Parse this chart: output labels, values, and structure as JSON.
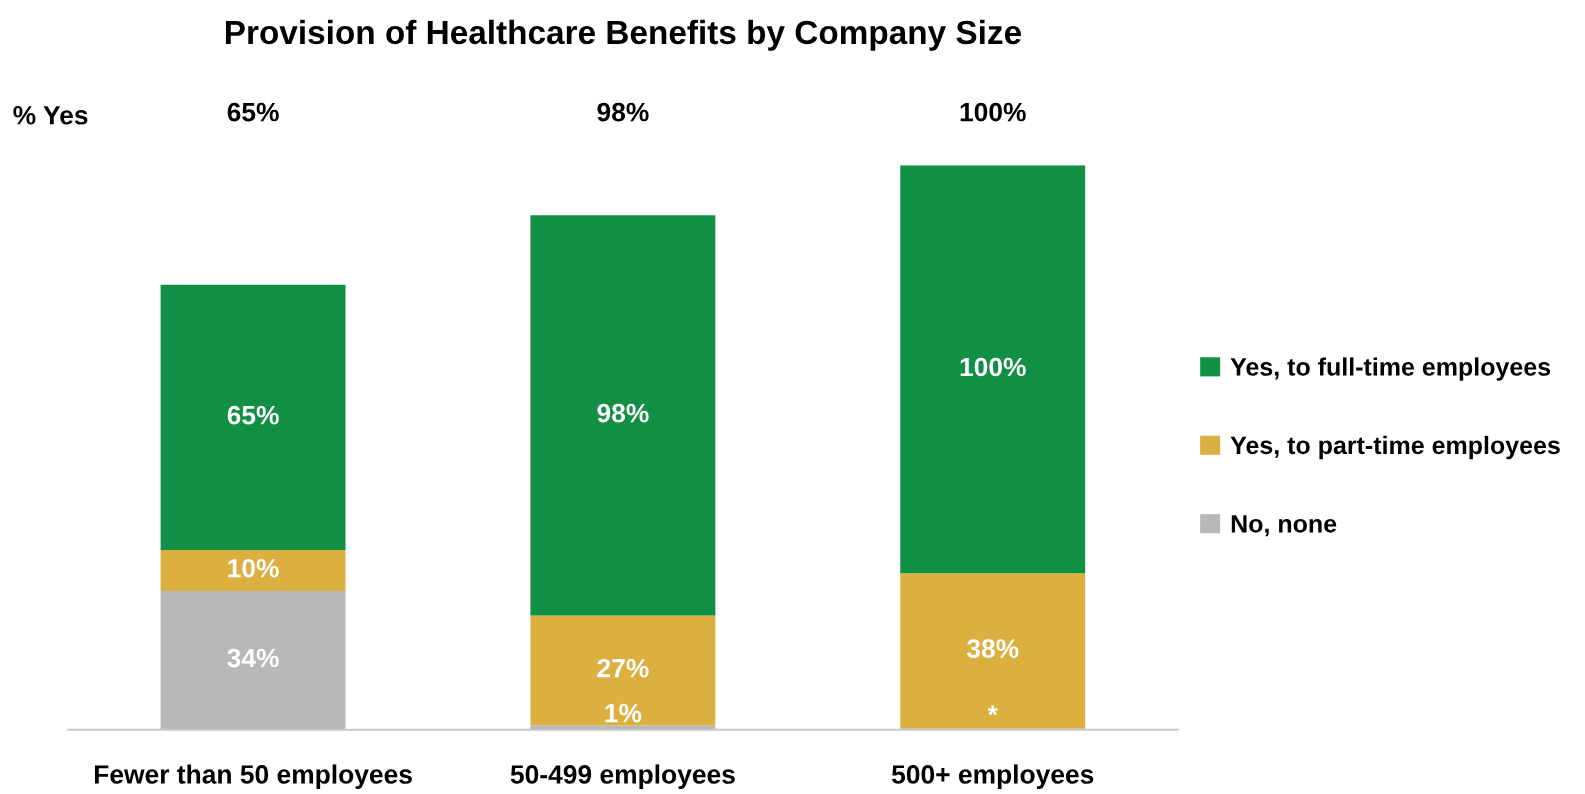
{
  "chart_data": {
    "type": "bar",
    "title": "Provision of Healthcare Benefits by Company Size",
    "categories": [
      "Fewer than 50 employees",
      "50-499 employees",
      "500+ employees"
    ],
    "stacked": true,
    "series": [
      {
        "name": "No, none",
        "color": "#b8b8b9",
        "values": [
          34,
          1,
          0.3
        ],
        "value_labels": [
          "34%",
          "1%",
          "*"
        ]
      },
      {
        "name": "Yes, to part-time employees",
        "color": "#dbb040",
        "values": [
          10,
          27,
          38
        ],
        "value_labels": [
          "10%",
          "27%",
          "38%"
        ]
      },
      {
        "name": "Yes, to full-time employees",
        "color": "#118f45",
        "values": [
          65,
          98,
          100
        ],
        "value_labels": [
          "65%",
          "98%",
          "100%"
        ]
      }
    ],
    "annotations": [
      "% Yes",
      "65%",
      "98%",
      "100%"
    ],
    "legend": "right",
    "grid": false
  }
}
